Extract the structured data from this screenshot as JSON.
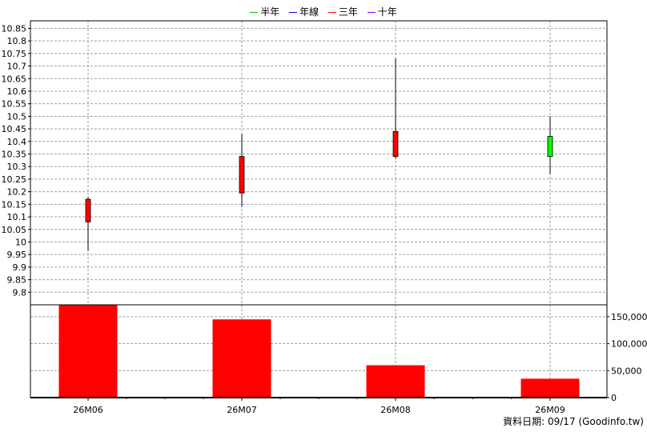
{
  "legend": [
    {
      "label": "半年",
      "color": "#00c000"
    },
    {
      "label": "年線",
      "color": "#0000ff"
    },
    {
      "label": "三年",
      "color": "#ff0000"
    },
    {
      "label": "十年",
      "color": "#8000ff"
    }
  ],
  "footer": {
    "text": "資料日期: 09/17  (Goodinfo.tw)"
  },
  "colors": {
    "up_candle": "#ff0000",
    "down_candle": "#00ff00",
    "volume_bar": "#ff0000",
    "grid": "#a0a0a0"
  },
  "chart_data": [
    {
      "type": "candlestick",
      "categories": [
        "26M06",
        "26M07",
        "26M08",
        "26M09"
      ],
      "ohlc": [
        {
          "open": 10.08,
          "high": 10.18,
          "low": 9.965,
          "close": 10.17
        },
        {
          "open": 10.195,
          "high": 10.43,
          "low": 10.14,
          "close": 10.34
        },
        {
          "open": 10.34,
          "high": 10.73,
          "low": 10.33,
          "close": 10.44
        },
        {
          "open": 10.42,
          "high": 10.5,
          "low": 10.27,
          "close": 10.34
        }
      ],
      "ylim": [
        9.75,
        10.88
      ],
      "yticks": [
        "9.8",
        "9.85",
        "9.9",
        "9.95",
        "10",
        "10.05",
        "10.1",
        "10.15",
        "10.2",
        "10.25",
        "10.3",
        "10.35",
        "10.4",
        "10.45",
        "10.5",
        "10.55",
        "10.6",
        "10.65",
        "10.7",
        "10.75",
        "10.8",
        "10.85"
      ],
      "grid": true
    },
    {
      "type": "bar",
      "categories": [
        "26M06",
        "26M07",
        "26M08",
        "26M09"
      ],
      "values": [
        172000,
        145000,
        60000,
        35000
      ],
      "ylim": [
        0,
        172000
      ],
      "yticks": [
        "0",
        "50,000",
        "100,000",
        "150,000"
      ],
      "grid": true
    }
  ]
}
